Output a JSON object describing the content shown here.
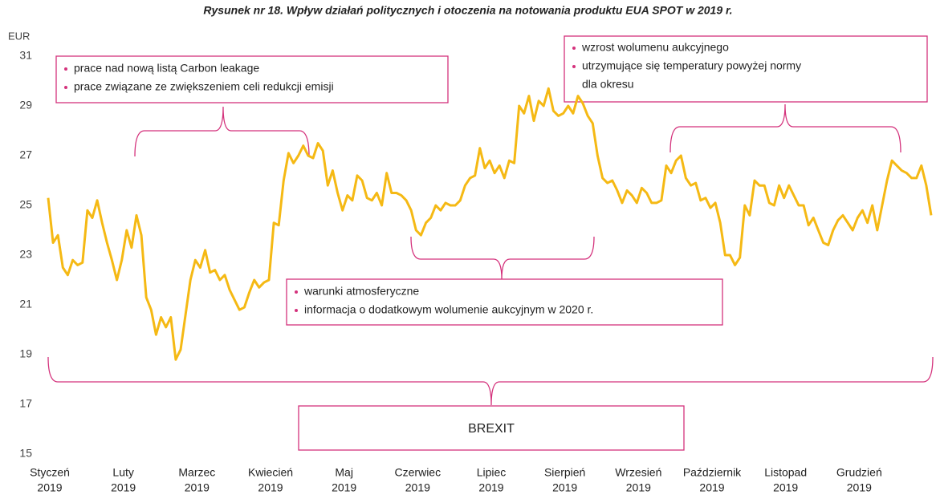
{
  "chart_data": {
    "type": "line",
    "title": "Rysunek nr 18. Wpływ działań politycznych i otoczenia na notowania produktu EUA SPOT w 2019 r.",
    "y_label": "EUR",
    "ylim": [
      15,
      31
    ],
    "yticks": [
      15,
      17,
      19,
      21,
      23,
      25,
      27,
      29,
      31
    ],
    "grid": false,
    "xtick_labels": [
      [
        "Styczeń",
        "2019"
      ],
      [
        "Luty",
        "2019"
      ],
      [
        "Marzec",
        "2019"
      ],
      [
        "Kwiecień",
        "2019"
      ],
      [
        "Maj",
        "2019"
      ],
      [
        "Czerwiec",
        "2019"
      ],
      [
        "Lipiec",
        "2019"
      ],
      [
        "Sierpień",
        "2019"
      ],
      [
        "Wrzesień",
        "2019"
      ],
      [
        "Październik",
        "2019"
      ],
      [
        "Listopad",
        "2019"
      ],
      [
        "Grudzień",
        "2019"
      ]
    ],
    "series": [
      {
        "name": "EUA SPOT",
        "color": "#f5b914",
        "values": [
          25.3,
          23.5,
          23.8,
          22.5,
          22.2,
          22.8,
          22.6,
          22.7,
          24.8,
          24.5,
          25.2,
          24.3,
          23.5,
          22.8,
          22.0,
          22.8,
          24.0,
          23.3,
          24.6,
          23.8,
          21.3,
          20.8,
          19.8,
          20.5,
          20.1,
          20.5,
          18.8,
          19.2,
          20.6,
          22.0,
          22.8,
          22.5,
          23.2,
          22.3,
          22.4,
          22.0,
          22.2,
          21.6,
          21.2,
          20.8,
          20.9,
          21.5,
          22.0,
          21.7,
          21.9,
          22.0,
          24.3,
          24.2,
          26.0,
          27.1,
          26.7,
          27.0,
          27.4,
          27.0,
          26.9,
          27.5,
          27.2,
          25.8,
          26.4,
          25.5,
          24.8,
          25.4,
          25.2,
          26.2,
          26.0,
          25.3,
          25.2,
          25.5,
          25.0,
          26.3,
          25.5,
          25.5,
          25.4,
          25.2,
          24.8,
          24.0,
          23.8,
          24.3,
          24.5,
          25.0,
          24.8,
          25.1,
          25.0,
          25.0,
          25.2,
          25.8,
          26.1,
          26.2,
          27.3,
          26.5,
          26.8,
          26.3,
          26.6,
          26.1,
          26.8,
          26.7,
          29.0,
          28.7,
          29.4,
          28.4,
          29.2,
          29.0,
          29.7,
          28.8,
          28.6,
          28.7,
          29.0,
          28.7,
          29.4,
          29.1,
          28.6,
          28.3,
          27.0,
          26.1,
          25.9,
          26.0,
          25.6,
          25.1,
          25.6,
          25.4,
          25.1,
          25.7,
          25.5,
          25.1,
          25.1,
          25.2,
          26.6,
          26.3,
          26.8,
          27.0,
          26.1,
          25.8,
          25.9,
          25.2,
          25.3,
          24.9,
          25.1,
          24.3,
          23.0,
          23.0,
          22.6,
          22.9,
          25.0,
          24.6,
          26.0,
          25.8,
          25.8,
          25.1,
          25.0,
          25.8,
          25.3,
          25.8,
          25.4,
          25.0,
          25.0,
          24.2,
          24.5,
          24.0,
          23.5,
          23.4,
          24.0,
          24.4,
          24.6,
          24.3,
          24.0,
          24.5,
          24.8,
          24.3,
          25.0,
          24.0,
          25.0,
          26.0,
          26.8,
          26.6,
          26.4,
          26.3,
          26.1,
          26.1,
          26.6,
          25.8,
          24.6
        ]
      }
    ],
    "annotations": [
      {
        "items": [
          [
            "prace nad nową listą Carbon leakage"
          ],
          [
            "prace związane ze zwiększeniem celi redukcji emisji"
          ]
        ]
      },
      {
        "items": [
          [
            "wzrost wolumenu aukcyjnego"
          ],
          [
            "utrzymujące się temperatury powyżej normy",
            "dla okresu"
          ]
        ]
      },
      {
        "items": [
          [
            "warunki atmosferyczne"
          ],
          [
            "informacja o dodatkowym wolumenie aukcyjnym w 2020 r."
          ]
        ]
      },
      {
        "items": [
          [
            "BREXIT"
          ]
        ]
      }
    ]
  }
}
